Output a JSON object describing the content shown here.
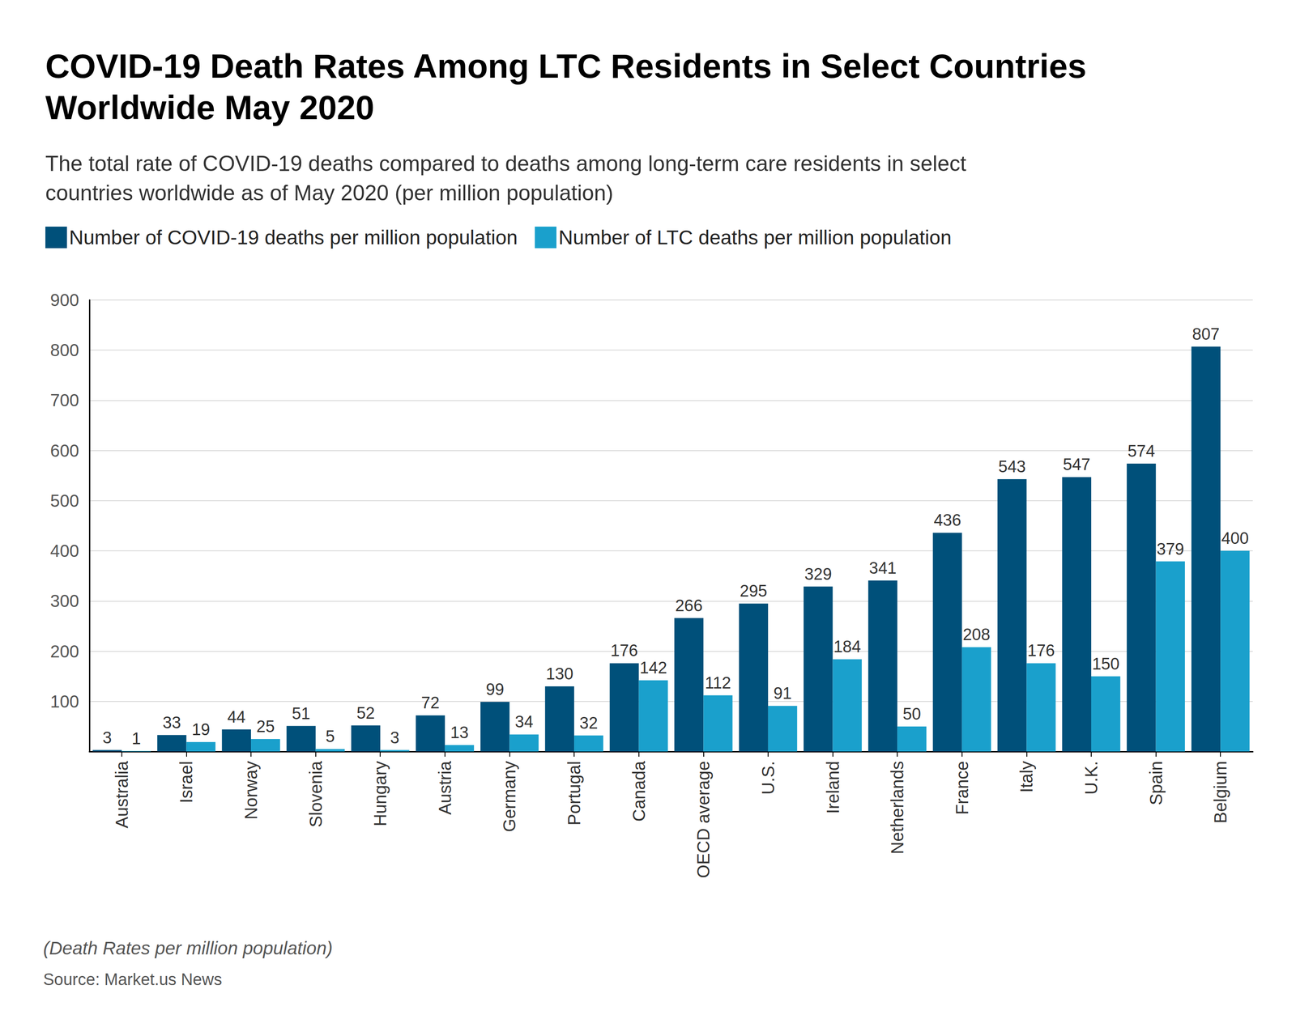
{
  "chart_data": {
    "type": "bar",
    "title": "COVID-19 Death Rates Among LTC Residents in Select Countries Worldwide May 2020",
    "subtitle": "The total rate of COVID-19 deaths compared to deaths among long-term care residents in select countries worldwide as of May 2020 (per million population)",
    "categories": [
      "Australia",
      "Israel",
      "Norway",
      "Slovenia",
      "Hungary",
      "Austria",
      "Germany",
      "Portugal",
      "Canada",
      "OECD average",
      "U.S.",
      "Ireland",
      "Netherlands",
      "France",
      "Italy",
      "U.K.",
      "Spain",
      "Belgium"
    ],
    "series": [
      {
        "name": "Number of COVID-19 deaths per million population",
        "color": "#00507a",
        "values": [
          3,
          33,
          44,
          51,
          52,
          72,
          99,
          130,
          176,
          266,
          295,
          329,
          341,
          436,
          543,
          547,
          574,
          807
        ]
      },
      {
        "name": "Number of LTC deaths per million population",
        "color": "#1aa0cc",
        "values": [
          1,
          19,
          25,
          5,
          3,
          13,
          34,
          32,
          142,
          112,
          91,
          184,
          50,
          208,
          176,
          150,
          379,
          400
        ]
      }
    ],
    "ylim": [
      0,
      900
    ],
    "yticks": [
      100,
      200,
      300,
      400,
      500,
      600,
      700,
      800,
      900
    ],
    "grid": true,
    "legend": "top-left",
    "data_labels": true,
    "footnote": "(Death Rates per million population)",
    "source": "Source: Market.us News"
  }
}
